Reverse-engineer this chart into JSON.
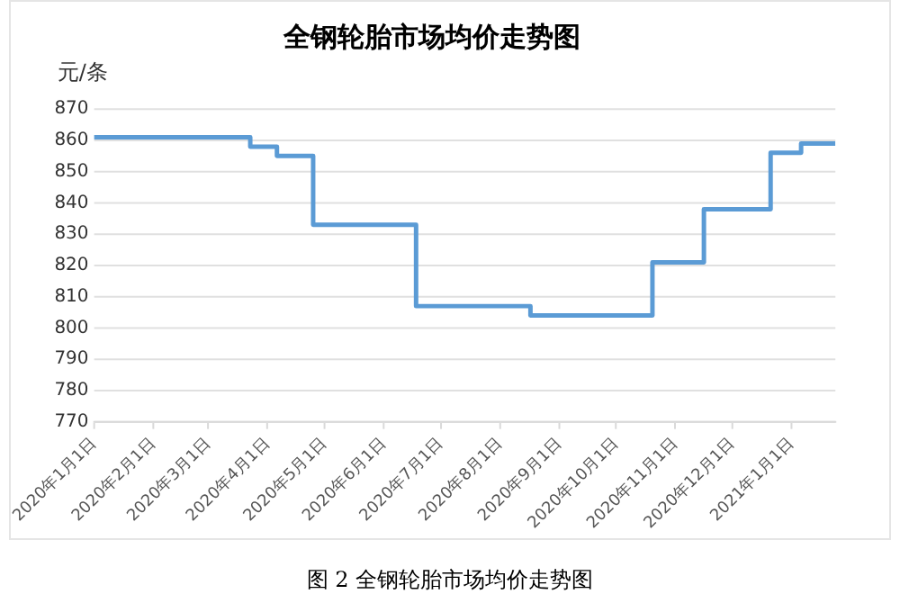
{
  "chart_data": {
    "type": "step",
    "title": "全钢轮胎市场均价走势图",
    "ylabel": "元/条",
    "annotations": [
      "图 2 全钢轮胎市场均价走势图"
    ],
    "x": [
      "2020-01-01",
      "2020-03-23",
      "2020-04-06",
      "2020-04-25",
      "2020-06-18",
      "2020-08-17",
      "2020-10-20",
      "2020-11-16",
      "2020-12-21",
      "2021-01-06",
      "2021-01-24"
    ],
    "series": [
      {
        "color": "#5b9bd5",
        "values": [
          861,
          858,
          855,
          833,
          807,
          804,
          821,
          838,
          856,
          859,
          859
        ]
      }
    ],
    "xlim": [
      "2020-01-01",
      "2021-01-24"
    ],
    "xticks": [
      {
        "value": "2020-01-01",
        "label": "2020年1月1日"
      },
      {
        "value": "2020-02-01",
        "label": "2020年2月1日"
      },
      {
        "value": "2020-03-01",
        "label": "2020年3月1日"
      },
      {
        "value": "2020-04-01",
        "label": "2020年4月1日"
      },
      {
        "value": "2020-05-01",
        "label": "2020年5月1日"
      },
      {
        "value": "2020-06-01",
        "label": "2020年6月1日"
      },
      {
        "value": "2020-07-01",
        "label": "2020年7月1日"
      },
      {
        "value": "2020-08-01",
        "label": "2020年8月1日"
      },
      {
        "value": "2020-09-01",
        "label": "2020年9月1日"
      },
      {
        "value": "2020-10-01",
        "label": "2020年10月1日"
      },
      {
        "value": "2020-11-01",
        "label": "2020年11月1日"
      },
      {
        "value": "2020-12-01",
        "label": "2020年12月1日"
      },
      {
        "value": "2021-01-01",
        "label": "2021年1月1日"
      }
    ],
    "ylim": [
      770,
      870
    ],
    "yticks": [
      770,
      780,
      790,
      800,
      810,
      820,
      830,
      840,
      850,
      860,
      870
    ],
    "grid": "y",
    "legend": false,
    "marker": "none",
    "line_style": "solid"
  }
}
